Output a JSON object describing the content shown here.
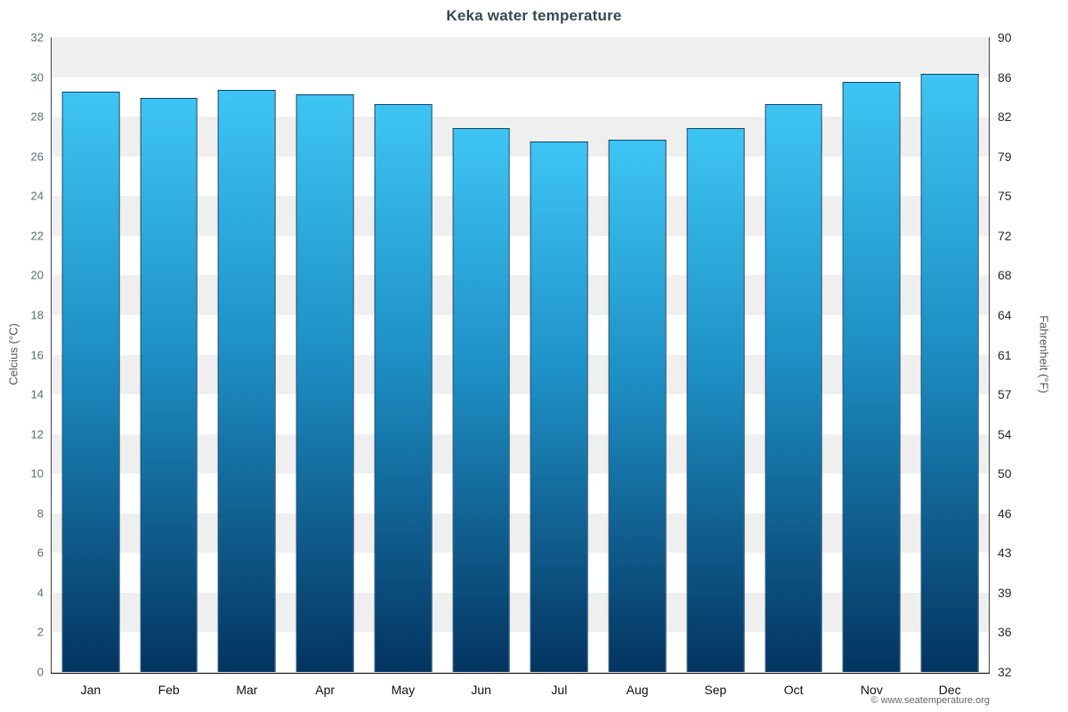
{
  "page": {
    "credit": "© www.seatemperature.org"
  },
  "chart_data": {
    "type": "bar",
    "title": "Keka water temperature",
    "categories": [
      "Jan",
      "Feb",
      "Mar",
      "Apr",
      "May",
      "Jun",
      "Jul",
      "Aug",
      "Sep",
      "Oct",
      "Nov",
      "Dec"
    ],
    "values": [
      29.2,
      28.9,
      29.3,
      29.1,
      28.6,
      27.4,
      26.7,
      26.8,
      27.4,
      28.6,
      29.7,
      30.1
    ],
    "unit": "°C",
    "ylim": [
      0,
      32
    ],
    "yticks_celsius": [
      0,
      2,
      4,
      6,
      8,
      10,
      12,
      14,
      16,
      18,
      20,
      22,
      24,
      26,
      28,
      30,
      32
    ],
    "yticks_fahrenheit": [
      "32",
      "36",
      "39",
      "43",
      "46",
      "50",
      "54",
      "57",
      "61",
      "64",
      "68",
      "72",
      "75",
      "79",
      "82",
      "86",
      "90"
    ],
    "ylabel_left": "Celcius (°C)",
    "ylabel_right": "Fahrenheit (°F)",
    "legend": null,
    "grid": "horizontal-bands-every-2C",
    "style": {
      "bar_top_color": "#3ec5f4",
      "bar_mid_color": "#1d8fc4",
      "bar_bottom_color": "#043460",
      "bar_border_color": "#0d4268",
      "band_color_a": "#efefef",
      "band_color_b": "#ffffff",
      "grid_line_color": "#e3e3e3",
      "title_color": "#37474f",
      "tick_color_left": "#5b6b77",
      "tick_color_right": "#2a2a2a",
      "month_color": "#111111"
    }
  }
}
